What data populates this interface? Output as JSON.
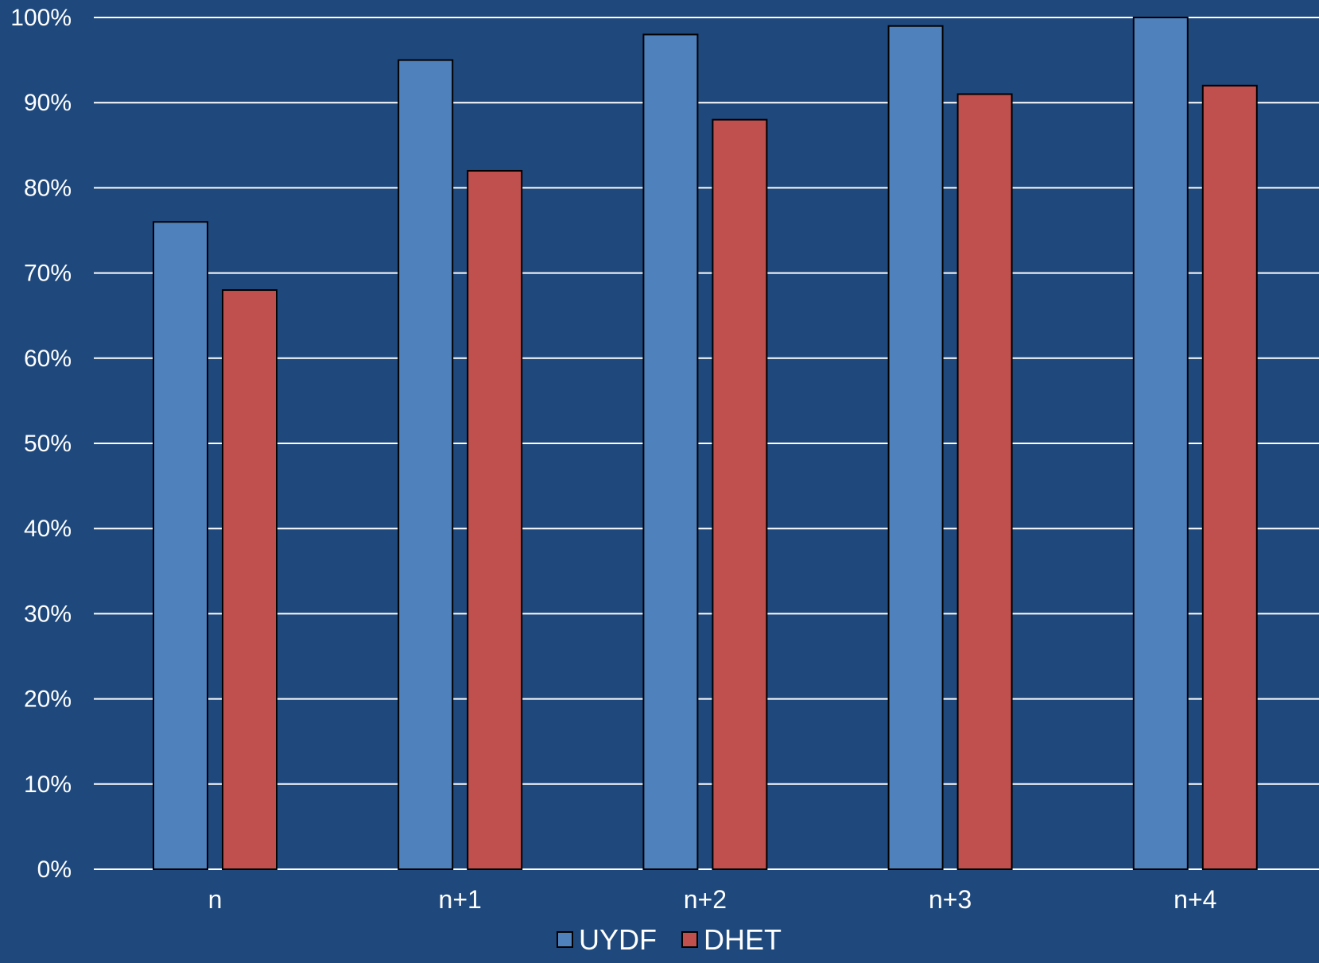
{
  "chart_data": {
    "type": "bar",
    "categories": [
      "n",
      "n+1",
      "n+2",
      "n+3",
      "n+4"
    ],
    "series": [
      {
        "name": "UYDF",
        "values": [
          76,
          95,
          98,
          99,
          100
        ],
        "color": "#4f81bd"
      },
      {
        "name": "DHET",
        "values": [
          68,
          82,
          88,
          91,
          92
        ],
        "color": "#c0504d"
      }
    ],
    "ylim": [
      0,
      100
    ],
    "yticks": [
      0,
      10,
      20,
      30,
      40,
      50,
      60,
      70,
      80,
      90,
      100
    ],
    "ytick_labels": [
      "0%",
      "10%",
      "20%",
      "30%",
      "40%",
      "50%",
      "60%",
      "70%",
      "80%",
      "90%",
      "100%"
    ],
    "grid": true,
    "legend_position": "bottom",
    "background": "#1f497d"
  }
}
